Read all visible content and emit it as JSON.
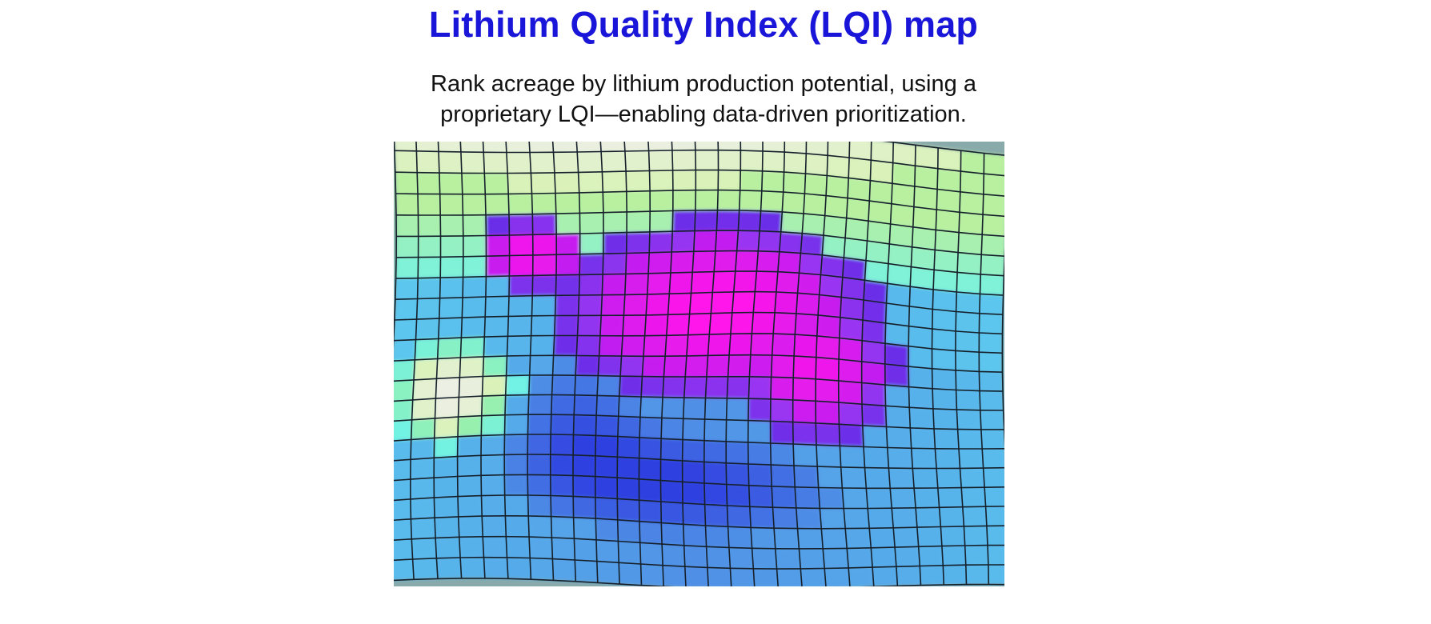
{
  "header": {
    "title": "Lithium Quality Index (LQI) map",
    "subtitle_line1": "Rank acreage by lithium production potential, using a",
    "subtitle_line2": "proprietary LQI—enabling data-driven prioritization."
  },
  "colors": {
    "title": "#1a16d9",
    "subtitle": "#111111",
    "grid_line": "#15202b",
    "scale": [
      "#2f5fe0",
      "#4f8fe6",
      "#5cc8ee",
      "#6ff2e6",
      "#9ff0a4",
      "#d9f2b8",
      "#ecefe4",
      "#9a36f2",
      "#6a2ee8",
      "#ff18ea"
    ]
  }
}
